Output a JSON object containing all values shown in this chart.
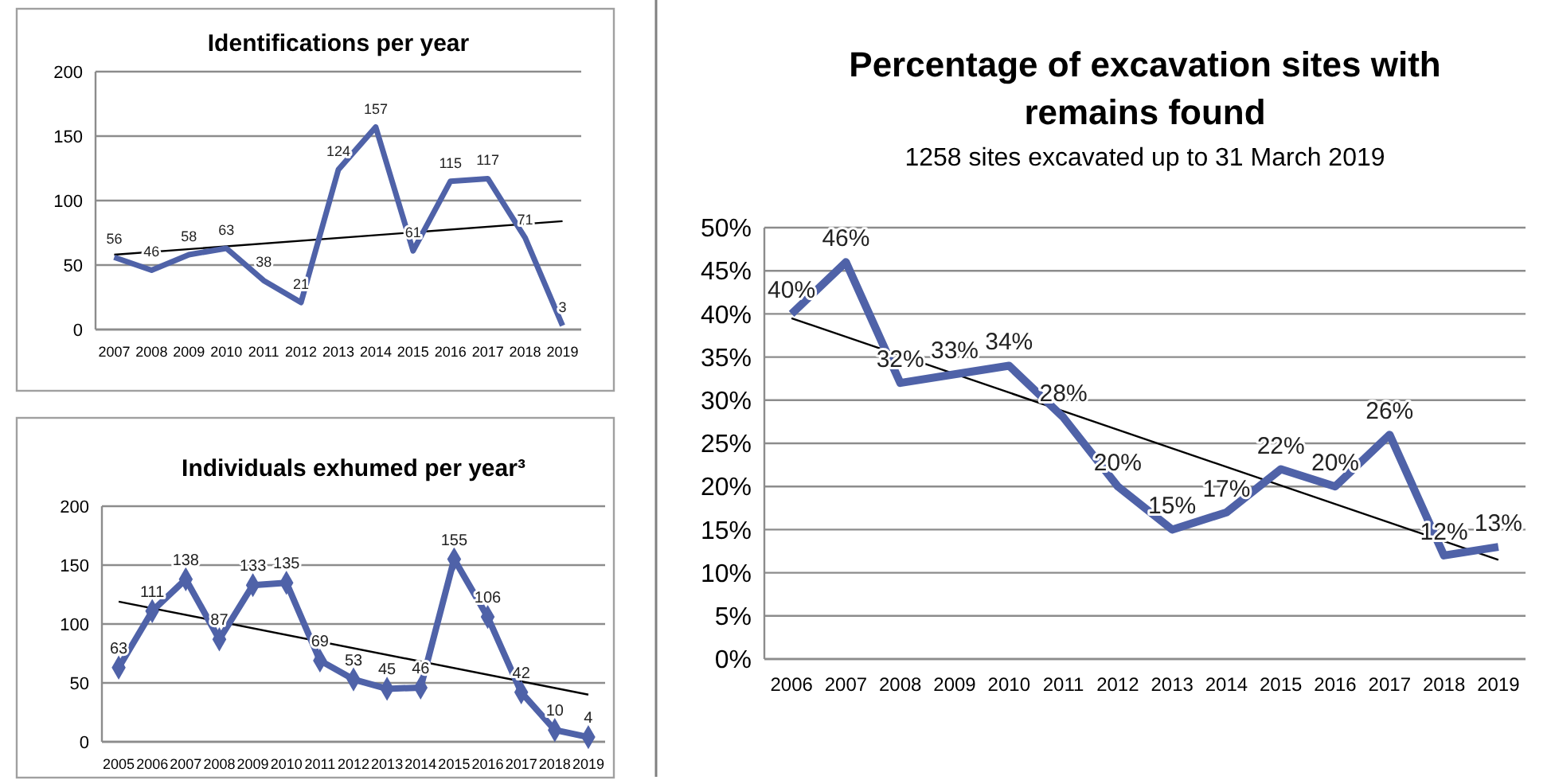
{
  "chart_data": [
    {
      "type": "line",
      "title": "Identifications per year",
      "x": [
        2007,
        2008,
        2009,
        2010,
        2011,
        2012,
        2013,
        2014,
        2015,
        2016,
        2017,
        2018,
        2019
      ],
      "xlim": [
        2006.5,
        2019.5
      ],
      "xticks": [
        2007,
        2008,
        2009,
        2010,
        2011,
        2012,
        2013,
        2014,
        2015,
        2016,
        2017,
        2018,
        2019
      ],
      "ylim": [
        0,
        200
      ],
      "yticks": [
        0,
        50,
        100,
        150,
        200
      ],
      "grid": "y",
      "marker": "none",
      "series": [
        {
          "color": "#4f62a8",
          "values": [
            56,
            46,
            58,
            63,
            38,
            21,
            124,
            157,
            61,
            115,
            117,
            71,
            3
          ],
          "value_labels": [
            "56",
            "46",
            "58",
            "63",
            "38",
            "21",
            "124",
            "157",
            "61",
            "115",
            "117",
            "71",
            "3"
          ]
        },
        {
          "type": "line",
          "color": "#000000",
          "x": [
            2007,
            2019
          ],
          "values": [
            58,
            84
          ]
        }
      ]
    },
    {
      "type": "line",
      "title": "Individuals exhumed per year³",
      "x": [
        2005,
        2006,
        2007,
        2008,
        2009,
        2010,
        2011,
        2012,
        2013,
        2014,
        2015,
        2016,
        2017,
        2018,
        2019
      ],
      "xlim": [
        2004.5,
        2019.5
      ],
      "xticks": [
        2005,
        2006,
        2007,
        2008,
        2009,
        2010,
        2011,
        2012,
        2013,
        2014,
        2015,
        2016,
        2017,
        2018,
        2019
      ],
      "ylim": [
        0,
        200
      ],
      "yticks": [
        0,
        50,
        100,
        150,
        200
      ],
      "grid": "y",
      "marker": "diamond",
      "series": [
        {
          "color": "#4f62a8",
          "values": [
            63,
            111,
            138,
            87,
            133,
            135,
            69,
            53,
            45,
            46,
            155,
            106,
            42,
            10,
            4
          ],
          "value_labels": [
            "63",
            "111",
            "138",
            "87",
            "133",
            "135",
            "69",
            "53",
            "45",
            "46",
            "155",
            "106",
            "42",
            "10",
            "4"
          ]
        },
        {
          "type": "line",
          "color": "#000000",
          "marker": "none",
          "x": [
            2005,
            2019
          ],
          "values": [
            119,
            40
          ]
        }
      ]
    },
    {
      "type": "line",
      "title": "Percentage of excavation sites with remains found",
      "subtitle": "1258 sites excavated up to 31 March 2019",
      "x": [
        2006,
        2007,
        2008,
        2009,
        2010,
        2011,
        2012,
        2013,
        2014,
        2015,
        2016,
        2017,
        2018,
        2019
      ],
      "xlim": [
        2005.5,
        2019.5
      ],
      "xticks": [
        2006,
        2007,
        2008,
        2009,
        2010,
        2011,
        2012,
        2013,
        2014,
        2015,
        2016,
        2017,
        2018,
        2019
      ],
      "ylim": [
        0,
        50
      ],
      "yticks": [
        {
          "value": 0,
          "label": "0%"
        },
        {
          "value": 5,
          "label": "5%"
        },
        {
          "value": 10,
          "label": "10%"
        },
        {
          "value": 15,
          "label": "15%"
        },
        {
          "value": 20,
          "label": "20%"
        },
        {
          "value": 25,
          "label": "25%"
        },
        {
          "value": 30,
          "label": "30%"
        },
        {
          "value": 35,
          "label": "35%"
        },
        {
          "value": 40,
          "label": "40%"
        },
        {
          "value": 45,
          "label": "45%"
        },
        {
          "value": 50,
          "label": "50%"
        }
      ],
      "grid": "y",
      "marker": "none",
      "series": [
        {
          "color": "#4f62a8",
          "values": [
            40,
            46,
            32,
            33,
            34,
            28,
            20,
            15,
            17,
            22,
            20,
            26,
            12,
            13
          ],
          "value_labels": [
            "40%",
            "46%",
            "32%",
            "33%",
            "34%",
            "28%",
            "20%",
            "15%",
            "17%",
            "22%",
            "20%",
            "26%",
            "12%",
            "13%"
          ]
        },
        {
          "type": "line",
          "color": "#000000",
          "x": [
            2006,
            2019
          ],
          "values": [
            39.5,
            11.5
          ]
        }
      ]
    }
  ]
}
